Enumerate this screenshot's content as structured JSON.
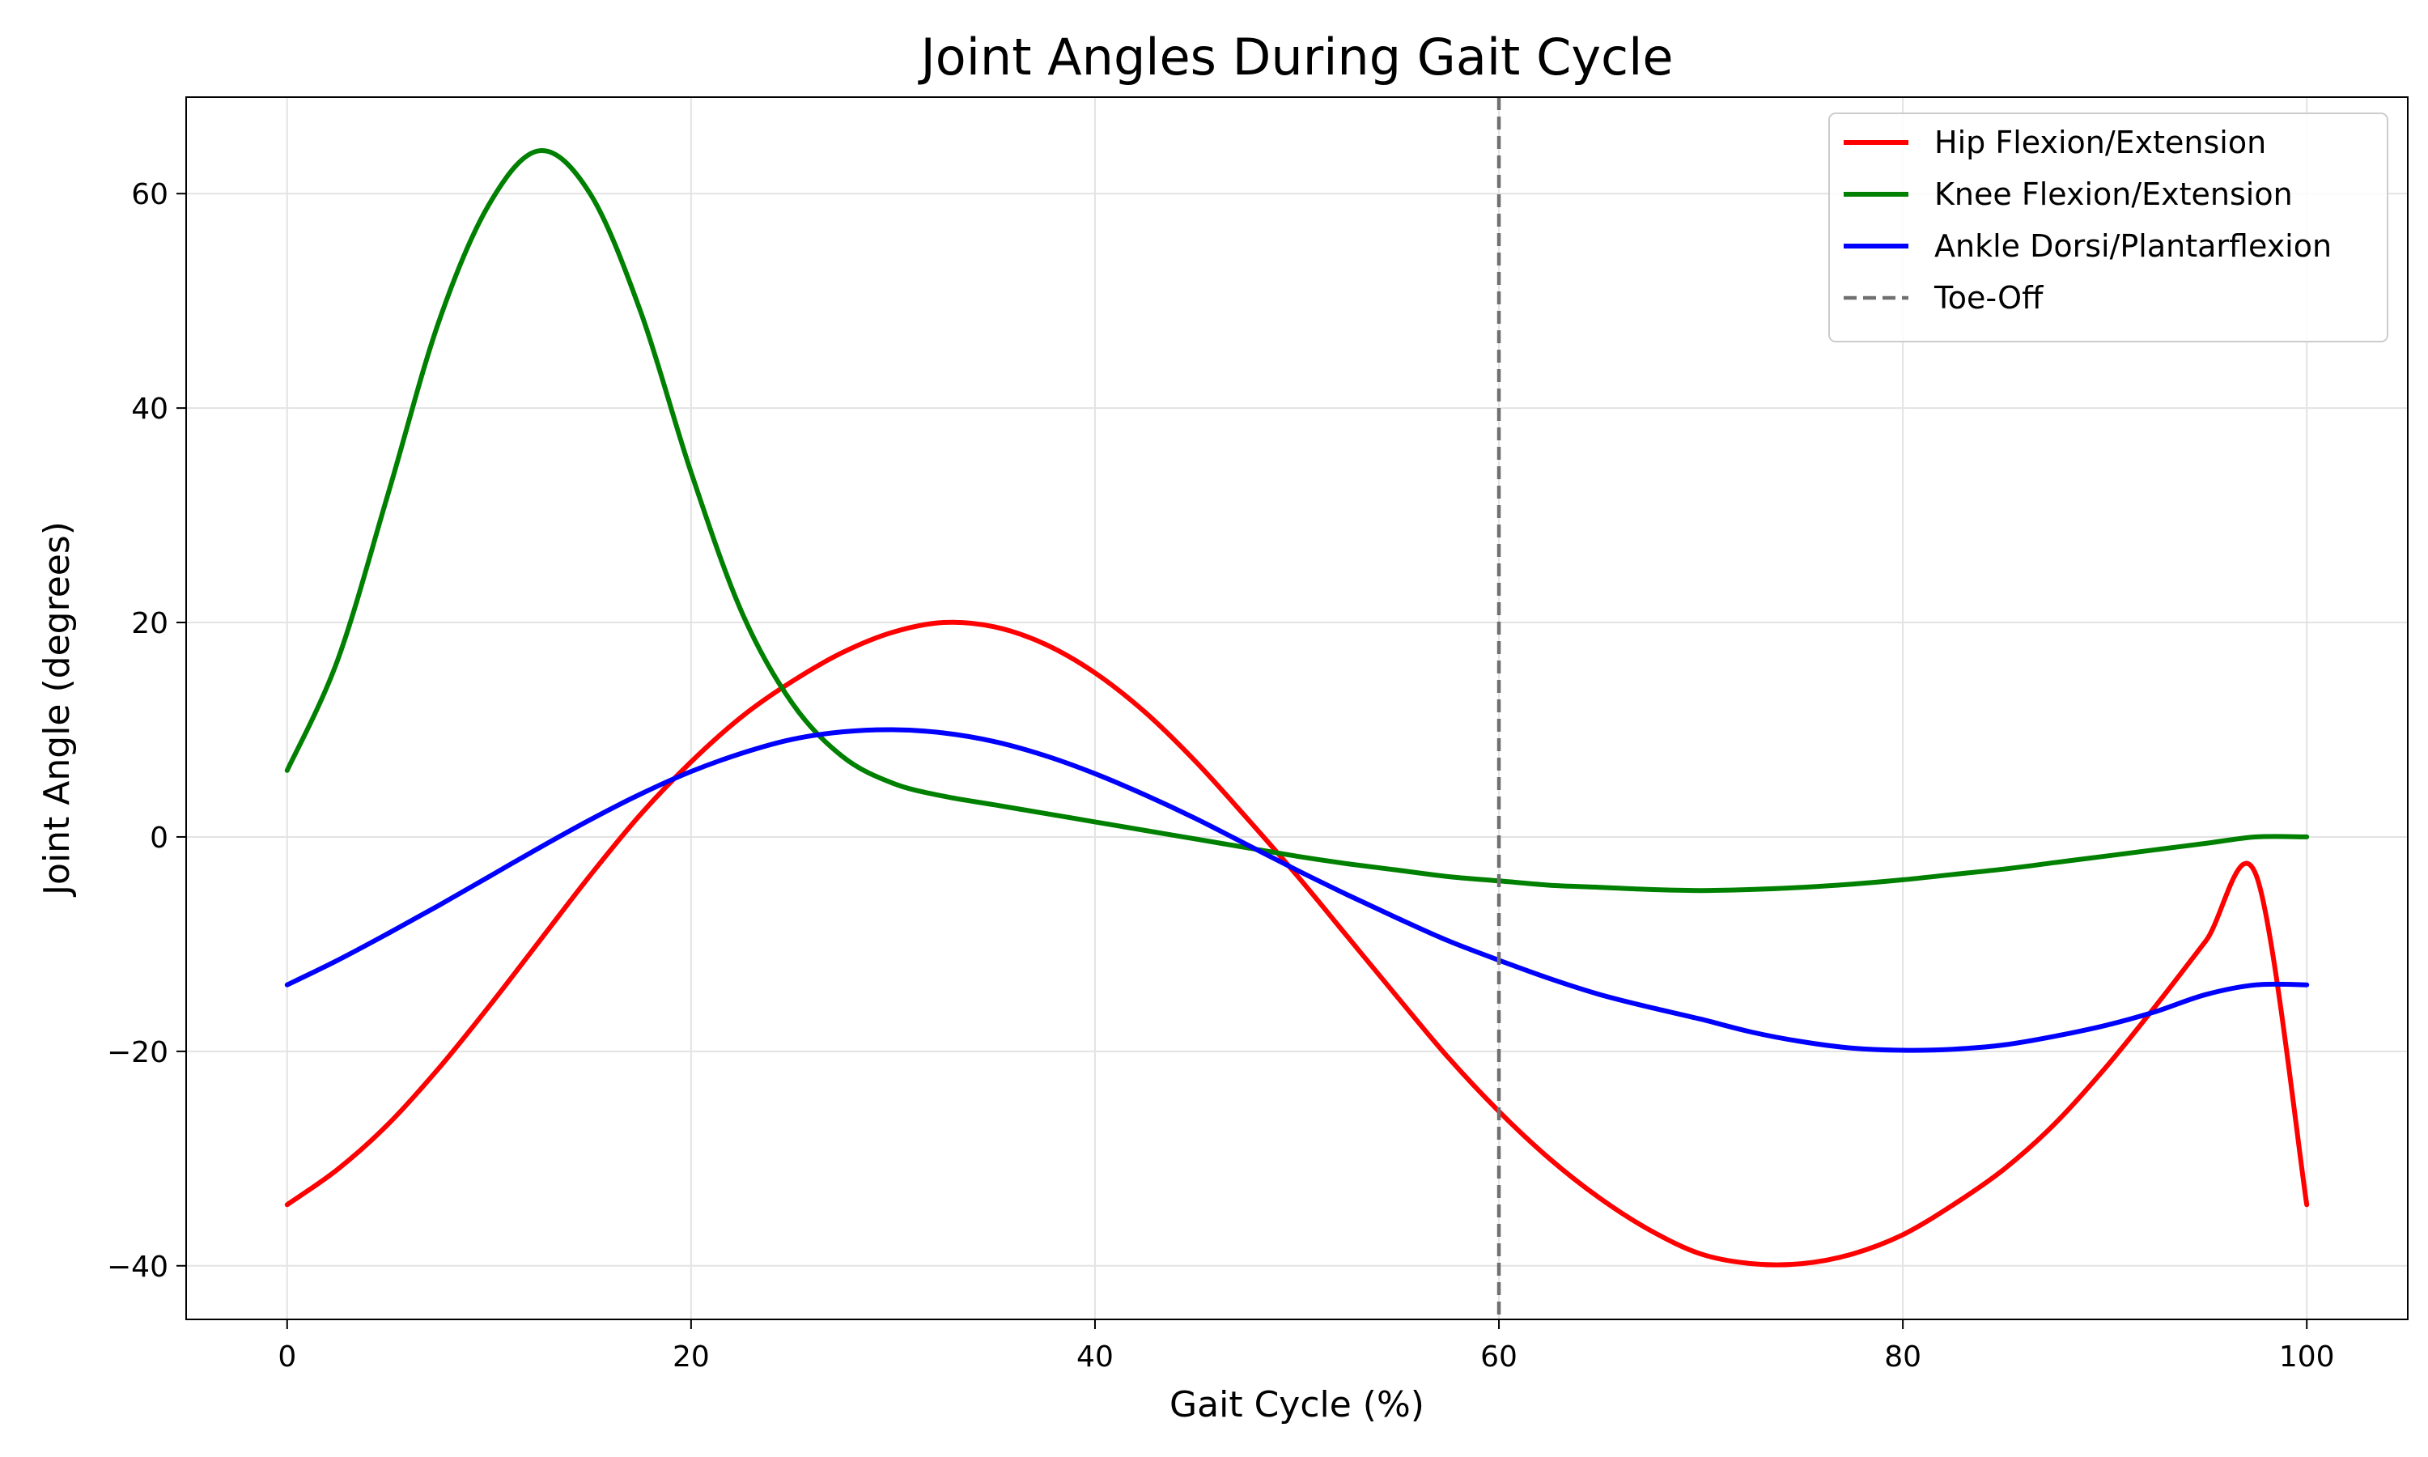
{
  "chart_data": {
    "type": "line",
    "title": "Joint Angles During Gait Cycle",
    "xlabel": "Gait Cycle (%)",
    "ylabel": "Joint Angle (degrees)",
    "xlim": [
      -5,
      105
    ],
    "ylim": [
      -45,
      69
    ],
    "xticks": [
      0,
      20,
      40,
      60,
      80,
      100
    ],
    "yticks": [
      -40,
      -20,
      0,
      20,
      40,
      60
    ],
    "ytick_labels": [
      "−40",
      "−20",
      "0",
      "20",
      "40",
      "60"
    ],
    "grid": true,
    "legend_position": "top-right",
    "x": [
      0,
      2.5,
      5,
      7.5,
      10,
      12.5,
      15,
      17.5,
      20,
      22.5,
      25,
      27.5,
      30,
      32.5,
      35,
      37.5,
      40,
      42.5,
      45,
      47.5,
      50,
      52.5,
      55,
      57.5,
      60,
      62.5,
      65,
      67.5,
      70,
      72.5,
      75,
      77.5,
      80,
      82.5,
      85,
      87.5,
      90,
      92.5,
      95,
      97.5,
      100
    ],
    "series": [
      {
        "name": "Hip Flexion/Extension",
        "color": "#ff0000",
        "style": "solid",
        "values": [
          -34.3,
          -31.0,
          -26.8,
          -21.6,
          -15.8,
          -9.7,
          -3.6,
          2.1,
          7.0,
          11.2,
          14.5,
          17.2,
          19.1,
          20.0,
          19.6,
          18.0,
          15.3,
          11.6,
          7.0,
          1.8,
          -3.6,
          -9.3,
          -15.0,
          -20.6,
          -25.6,
          -30.0,
          -33.7,
          -36.7,
          -38.9,
          -39.8,
          -39.8,
          -38.9,
          -37.1,
          -34.3,
          -31.0,
          -26.8,
          -21.6,
          -15.8,
          -9.7,
          -3.6,
          -34.3
        ],
        "values_note_removed": true
      },
      {
        "name": "Knee Flexion/Extension",
        "color": "#008000",
        "style": "solid",
        "values": [
          6.2,
          16.5,
          32.0,
          48.0,
          59.0,
          64.0,
          60.0,
          49.0,
          34.0,
          21.0,
          12.5,
          7.5,
          5.0,
          3.8,
          3.0,
          2.2,
          1.4,
          0.6,
          -0.2,
          -1.0,
          -1.8,
          -2.5,
          -3.1,
          -3.7,
          -4.1,
          -4.5,
          -4.7,
          -4.9,
          -5.0,
          -4.9,
          -4.7,
          -4.4,
          -4.0,
          -3.5,
          -3.0,
          -2.4,
          -1.8,
          -1.2,
          -0.6,
          0.0,
          0.0
        ]
      },
      {
        "name": "Ankle Dorsi/Plantarflexion",
        "color": "#0000ff",
        "style": "solid",
        "values": [
          -13.8,
          -11.5,
          -9.0,
          -6.4,
          -3.7,
          -1.0,
          1.6,
          4.0,
          6.1,
          7.8,
          9.1,
          9.8,
          10.0,
          9.7,
          8.9,
          7.6,
          5.9,
          3.9,
          1.7,
          -0.7,
          -3.1,
          -5.4,
          -7.6,
          -9.7,
          -11.5,
          -13.2,
          -14.7,
          -15.9,
          -17.0,
          -18.2,
          -19.1,
          -19.7,
          -19.9,
          -19.8,
          -19.4,
          -18.6,
          -17.6,
          -16.3,
          -14.7,
          -13.8,
          -13.8
        ]
      }
    ],
    "annotations": [
      {
        "type": "vline",
        "x": 60,
        "name": "Toe-Off",
        "color": "#707070",
        "style": "dashed"
      }
    ]
  }
}
